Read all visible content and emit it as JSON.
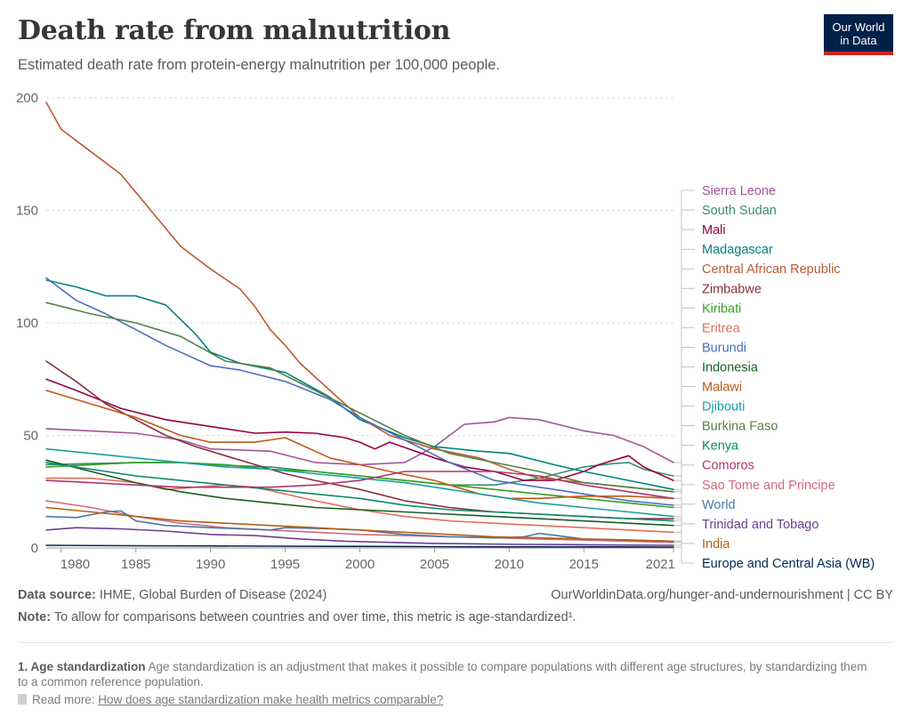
{
  "header": {
    "title": "Death rate from malnutrition",
    "subtitle": "Estimated death rate from protein-energy malnutrition per 100,000 people.",
    "logo_line1": "Our World",
    "logo_line2": "in Data"
  },
  "footer": {
    "source_label": "Data source:",
    "source_text": " IHME, Global Burden of Disease (2024)",
    "url_text": "OurWorldinData.org/hunger-and-undernourishment | CC BY",
    "note_label": "Note:",
    "note_text": " To allow for comparisons between countries and over time, this metric is age-standardized¹.",
    "footnote_label": "1. Age standardization",
    "footnote_text": " Age standardization is an adjustment that makes it possible to compare populations with different age structures, by standardizing them to a common reference population.",
    "readmore_label": "Read more: ",
    "readmore_link": "How does age standardization make health metrics comparable?"
  },
  "chart_data": {
    "type": "line",
    "title": "Death rate from malnutrition",
    "subtitle": "Estimated death rate from protein-energy malnutrition per 100,000 people.",
    "xlim": [
      1979,
      2021
    ],
    "ylim": [
      0,
      200
    ],
    "y_ticks": [
      0,
      50,
      100,
      150,
      200
    ],
    "x_ticks": [
      1980,
      1985,
      1990,
      1995,
      2000,
      2005,
      2010,
      2015,
      2021
    ],
    "grid": "horizontal dashed",
    "legend": "right, labels at line ends",
    "series": [
      {
        "name": "Sierra Leone",
        "color": "#a2559c",
        "x": [
          1979,
          1982,
          1985,
          1988,
          1990,
          1994,
          1997,
          2000,
          2003,
          2005,
          2007,
          2009,
          2010,
          2012,
          2015,
          2017,
          2019,
          2021
        ],
        "y": [
          53,
          52,
          51,
          48,
          44,
          43,
          38,
          37,
          38,
          45,
          55,
          56,
          58,
          57,
          52,
          50,
          45,
          38
        ]
      },
      {
        "name": "South Sudan",
        "color": "#3a8e6e",
        "x": [
          1979,
          1982,
          1985,
          1988,
          1990,
          1994,
          1997,
          2000,
          2003,
          2006,
          2009,
          2012,
          2015,
          2017,
          2018,
          2019,
          2021
        ],
        "y": [
          37,
          37.5,
          38,
          38,
          37,
          36,
          34,
          32,
          30,
          28,
          28,
          31,
          36,
          37.5,
          38,
          35,
          32
        ]
      },
      {
        "name": "Mali",
        "color": "#970046",
        "x": [
          1979,
          1981,
          1984,
          1987,
          1990,
          1993,
          1995,
          1997,
          1999,
          2000,
          2001,
          2002,
          2005,
          2007,
          2009,
          2011,
          2013,
          2015,
          2016,
          2018,
          2019,
          2021
        ],
        "y": [
          75,
          70,
          62,
          57,
          54,
          51,
          51.5,
          51,
          49,
          47,
          44,
          47,
          40,
          36,
          34,
          30,
          30,
          34,
          37,
          41,
          36,
          30
        ]
      },
      {
        "name": "Madagascar",
        "color": "#00847e",
        "x": [
          1979,
          1981,
          1983,
          1985,
          1987,
          1989,
          1990,
          1992,
          1995,
          1998,
          2000,
          2003,
          2005,
          2008,
          2010,
          2013,
          2015,
          2018,
          2021
        ],
        "y": [
          119,
          116,
          112,
          112,
          108,
          95,
          87,
          82,
          78,
          67,
          57,
          49,
          45,
          43,
          42,
          37,
          34,
          30,
          26
        ]
      },
      {
        "name": "Central African Republic",
        "color": "#bc5a34",
        "x": [
          1979,
          1980,
          1982,
          1984,
          1986,
          1988,
          1990,
          1992,
          1993,
          1994,
          1995,
          1996,
          1998,
          2000,
          2002,
          2005,
          2008,
          2010,
          2012,
          2015,
          2018,
          2021
        ],
        "y": [
          198,
          186,
          176,
          166,
          150,
          134,
          124,
          115,
          107,
          97,
          90,
          82,
          70,
          58,
          50,
          44,
          40,
          35,
          31,
          29,
          27,
          25
        ]
      },
      {
        "name": "Zimbabwe",
        "color": "#883039",
        "x": [
          1979,
          1981,
          1983,
          1985,
          1987,
          1989,
          1991,
          1993,
          1995,
          1997,
          2000,
          2003,
          2006,
          2009,
          2012,
          2015,
          2018,
          2021
        ],
        "y": [
          83,
          74,
          64,
          57,
          50,
          45,
          41,
          37,
          33,
          30,
          26,
          21,
          18,
          16,
          15,
          14,
          13,
          13
        ]
      },
      {
        "name": "Kiribati",
        "color": "#389f24",
        "x": [
          1979,
          1982,
          1985,
          1988,
          1991,
          1994,
          1997,
          2000,
          2003,
          2006,
          2009,
          2012,
          2015,
          2018,
          2021
        ],
        "y": [
          36,
          37,
          38,
          38,
          37,
          35,
          34,
          32,
          30,
          28,
          26,
          24,
          22,
          20,
          18
        ]
      },
      {
        "name": "Eritrea",
        "color": "#e56e5a",
        "x": [
          1979,
          1982,
          1985,
          1987,
          1989,
          1991,
          1993,
          1995,
          1997,
          2000,
          2003,
          2006,
          2009,
          2012,
          2015,
          2018,
          2021
        ],
        "y": [
          31,
          31,
          29,
          26,
          27,
          28,
          27,
          24,
          21,
          17,
          14,
          12,
          11,
          10,
          9,
          8,
          7
        ]
      },
      {
        "name": "Burundi",
        "color": "#4c6fbf",
        "x": [
          1979,
          1981,
          1983,
          1985,
          1987,
          1990,
          1992,
          1995,
          1998,
          2000,
          2003,
          2006,
          2009,
          2012,
          2015,
          2018,
          2021
        ],
        "y": [
          120,
          110,
          104,
          97,
          90,
          81,
          79,
          74,
          66,
          58,
          48,
          38,
          30,
          27,
          24,
          21,
          19
        ]
      },
      {
        "name": "Indonesia",
        "color": "#1a5e24",
        "x": [
          1979,
          1982,
          1985,
          1988,
          1991,
          1994,
          1997,
          2000,
          2003,
          2006,
          2009,
          2012,
          2015,
          2018,
          2021
        ],
        "y": [
          39,
          34,
          29,
          25,
          22,
          20,
          18,
          17,
          16,
          15,
          14,
          13,
          12,
          11,
          10
        ]
      },
      {
        "name": "Malawi",
        "color": "#c05917",
        "x": [
          1979,
          1982,
          1985,
          1988,
          1990,
          1993,
          1995,
          1996,
          1998,
          2000,
          2002,
          2005,
          2008,
          2010,
          2012,
          2015,
          2018,
          2021
        ],
        "y": [
          70,
          64,
          58,
          50,
          47,
          47,
          49,
          46,
          40,
          37,
          34,
          30,
          24,
          22,
          22,
          23,
          23,
          22
        ]
      },
      {
        "name": "Djibouti",
        "color": "#18a0a0",
        "x": [
          1979,
          1982,
          1985,
          1988,
          1991,
          1994,
          1997,
          2000,
          2003,
          2006,
          2009,
          2012,
          2015,
          2018,
          2021
        ],
        "y": [
          44,
          42,
          40,
          38,
          36,
          35,
          33,
          31,
          29,
          26,
          23,
          20,
          18,
          16,
          14
        ]
      },
      {
        "name": "Burkina Faso",
        "color": "#578145",
        "x": [
          1979,
          1982,
          1985,
          1988,
          1991,
          1994,
          1997,
          2000,
          2003,
          2006,
          2009,
          2012,
          2015,
          2018,
          2021
        ],
        "y": [
          109,
          104,
          100,
          94,
          83,
          80,
          70,
          60,
          50,
          42,
          38,
          34,
          29,
          27,
          25
        ]
      },
      {
        "name": "Kenya",
        "color": "#0c8a6e",
        "x": [
          1979,
          1982,
          1985,
          1988,
          1991,
          1994,
          1997,
          2000,
          2003,
          2006,
          2009,
          2012,
          2015,
          2018,
          2021
        ],
        "y": [
          38,
          35,
          32,
          30,
          28,
          26,
          24,
          22,
          19,
          17,
          16,
          15,
          14,
          13,
          12
        ]
      },
      {
        "name": "Comoros",
        "color": "#b13470",
        "x": [
          1979,
          1982,
          1985,
          1988,
          1991,
          1994,
          1997,
          2000,
          2003,
          2006,
          2009,
          2012,
          2015,
          2018,
          2021
        ],
        "y": [
          30,
          29,
          28,
          27,
          27,
          27,
          28,
          30,
          34,
          34,
          34,
          32,
          28,
          25,
          22
        ]
      },
      {
        "name": "Sao Tome and Principe",
        "color": "#d4697d",
        "x": [
          1979,
          1982,
          1985,
          1988,
          1991,
          1994,
          1997,
          2000,
          2003,
          2006,
          2009,
          2012,
          2015,
          2018,
          2021
        ],
        "y": [
          21,
          18,
          14,
          11,
          9,
          8,
          7,
          6,
          5.5,
          5,
          4.5,
          4,
          3.5,
          3,
          2.5
        ]
      },
      {
        "name": "World",
        "color": "#4a7aa8",
        "x": [
          1979,
          1981,
          1983,
          1984,
          1985,
          1987,
          1990,
          1994,
          1995,
          1998,
          2000,
          2003,
          2006,
          2009,
          2011,
          2012,
          2015,
          2018,
          2021
        ],
        "y": [
          14,
          13.5,
          16,
          16.5,
          12,
          10,
          9,
          8,
          9,
          8.5,
          8,
          6,
          5,
          4.5,
          5,
          6.5,
          4,
          3.5,
          3
        ]
      },
      {
        "name": "Trinidad and Tobago",
        "color": "#6d3e91",
        "x": [
          1979,
          1981,
          1984,
          1987,
          1990,
          1993,
          1996,
          1999,
          2002,
          2005,
          2008,
          2011,
          2014,
          2017,
          2021
        ],
        "y": [
          8,
          9,
          8.5,
          7.5,
          6,
          5.5,
          4,
          3,
          2.5,
          2,
          1.8,
          1.6,
          1.5,
          1.3,
          1.2
        ]
      },
      {
        "name": "India",
        "color": "#b16214",
        "x": [
          1979,
          1982,
          1985,
          1988,
          1991,
          1994,
          1997,
          2000,
          2003,
          2006,
          2009,
          2012,
          2015,
          2018,
          2021
        ],
        "y": [
          18,
          16,
          14,
          12,
          11,
          10,
          9,
          8,
          7,
          6,
          5,
          4.5,
          4,
          3.5,
          3
        ]
      },
      {
        "name": "Europe and Central Asia (WB)",
        "color": "#00295b",
        "x": [
          1979,
          1985,
          1990,
          1995,
          2000,
          2005,
          2010,
          2015,
          2021
        ],
        "y": [
          1.2,
          1,
          0.9,
          0.8,
          0.7,
          0.6,
          0.5,
          0.5,
          0.4
        ]
      }
    ]
  }
}
